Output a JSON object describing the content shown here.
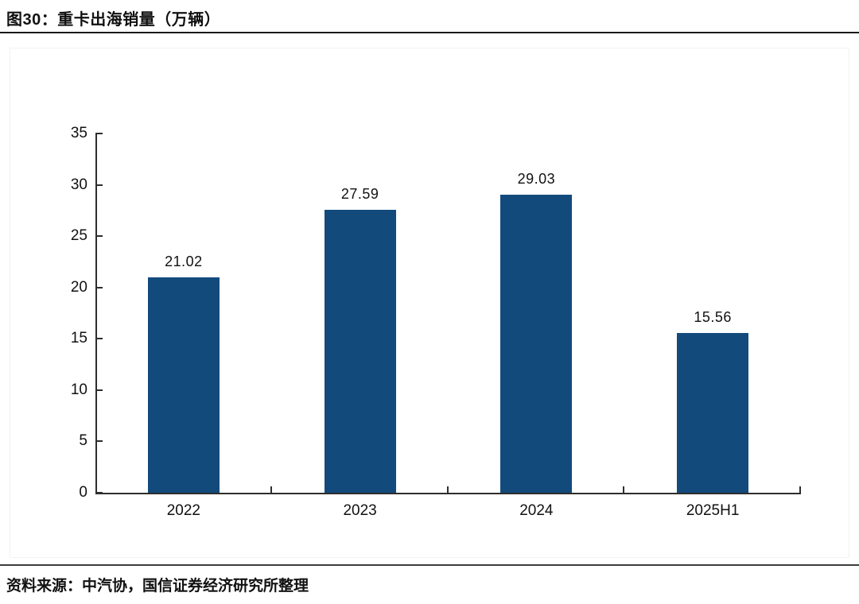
{
  "figure": {
    "title": "图30：重卡出海销量（万辆）",
    "source": "资料来源：中汽协，国信证券经济研究所整理"
  },
  "chart_data": {
    "type": "bar",
    "title": "重卡出海销量（万辆）",
    "categories": [
      "2022",
      "2023",
      "2024",
      "2025H1"
    ],
    "values": [
      21.02,
      27.59,
      29.03,
      15.56
    ],
    "data_labels": [
      "21.02",
      "27.59",
      "29.03",
      "15.56"
    ],
    "xlabel": "",
    "ylabel": "",
    "ylim": [
      0,
      35
    ],
    "yticks": [
      0,
      5,
      10,
      15,
      20,
      25,
      30,
      35
    ],
    "grid": false,
    "legend_position": "none",
    "bar_color": "#134A7C",
    "axis_color": "#2e2e2e",
    "label_color": "#111111"
  }
}
